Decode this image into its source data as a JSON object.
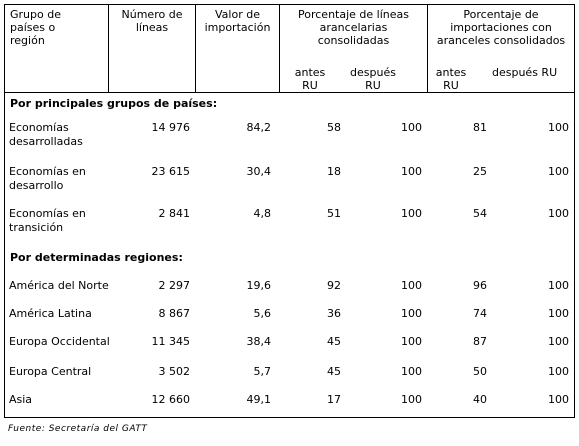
{
  "headers": {
    "group": "Grupo de\npaíses o\nregión",
    "lines": "Número de\nlíneas",
    "value": "Valor de\nimportación",
    "pct_lines": "Porcentaje de líneas\narancelarias\nconsolidadas",
    "pct_imports": "Porcentaje de\nimportaciones con\naranceles consolidados",
    "before": "antes\nRU",
    "after": "después\nRU",
    "before2": "antes\nRU",
    "after2": "después RU"
  },
  "sections": [
    {
      "title": "Por principales grupos de países:",
      "rows": [
        {
          "label": "Economías\ndesarrolladas",
          "lines": "14 976",
          "value": "84,2",
          "pl_before": "58",
          "pl_after": "100",
          "pi_before": "81",
          "pi_after": "100"
        },
        {
          "label": "Economías en\ndesarrollo",
          "lines": "23 615",
          "value": "30,4",
          "pl_before": "18",
          "pl_after": "100",
          "pi_before": "25",
          "pi_after": "100"
        },
        {
          "label": "Economías en\ntransición",
          "lines": "2 841",
          "value": "4,8",
          "pl_before": "51",
          "pl_after": "100",
          "pi_before": "54",
          "pi_after": "100"
        }
      ]
    },
    {
      "title": "Por determinadas regiones:",
      "rows": [
        {
          "label": "América del Norte",
          "lines": "2 297",
          "value": "19,6",
          "pl_before": "92",
          "pl_after": "100",
          "pi_before": "96",
          "pi_after": "100"
        },
        {
          "label": "América Latina",
          "lines": "8 867",
          "value": "5,6",
          "pl_before": "36",
          "pl_after": "100",
          "pi_before": "74",
          "pi_after": "100"
        },
        {
          "label": "Europa Occidental",
          "lines": "11 345",
          "value": "38,4",
          "pl_before": "45",
          "pl_after": "100",
          "pi_before": "87",
          "pi_after": "100"
        },
        {
          "label": "Europa Central",
          "lines": "3 502",
          "value": "5,7",
          "pl_before": "45",
          "pl_after": "100",
          "pi_before": "50",
          "pi_after": "100"
        },
        {
          "label": "Asia",
          "lines": "12 660",
          "value": "49,1",
          "pl_before": "17",
          "pl_after": "100",
          "pi_before": "40",
          "pi_after": "100"
        }
      ]
    }
  ],
  "source": "Fuente: Secretaría del GATT"
}
